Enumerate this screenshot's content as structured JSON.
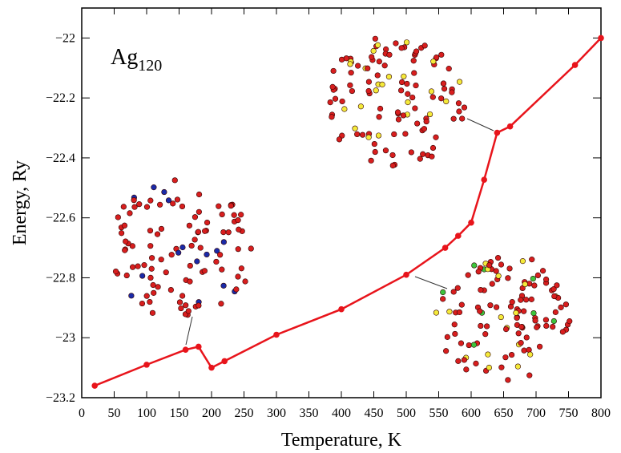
{
  "chart_data": {
    "type": "line",
    "x_label": "Temperature, K",
    "y_label": "Energy, Ry",
    "annotation": {
      "text": "Ag",
      "subscript": "120"
    },
    "x": [
      20,
      100,
      160,
      180,
      200,
      220,
      300,
      400,
      500,
      560,
      580,
      600,
      620,
      640,
      660,
      760,
      800
    ],
    "series": [
      {
        "color": "#e8141b",
        "values": [
          -23.16,
          -23.09,
          -23.04,
          -23.03,
          -23.1,
          -23.078,
          -22.99,
          -22.905,
          -22.79,
          -22.7,
          -22.66,
          -22.616,
          -22.473,
          -22.316,
          -22.295,
          -22.09,
          -22.0
        ]
      }
    ],
    "xlim": [
      0,
      800
    ],
    "xticks": [
      0,
      50,
      100,
      150,
      200,
      250,
      300,
      350,
      400,
      450,
      500,
      550,
      600,
      650,
      700,
      750,
      800
    ],
    "ylim": [
      -23.2,
      -21.9
    ],
    "yticks": [
      {
        "value": -23.2,
        "label": "−23.2"
      },
      {
        "value": -23,
        "label": "−23"
      },
      {
        "value": -22.8,
        "label": "−22.8"
      },
      {
        "value": -22.6,
        "label": "−22.6"
      },
      {
        "value": -22.4,
        "label": "−22.4"
      },
      {
        "value": -22.2,
        "label": "−22.2"
      },
      {
        "value": -22,
        "label": "−22"
      }
    ]
  }
}
